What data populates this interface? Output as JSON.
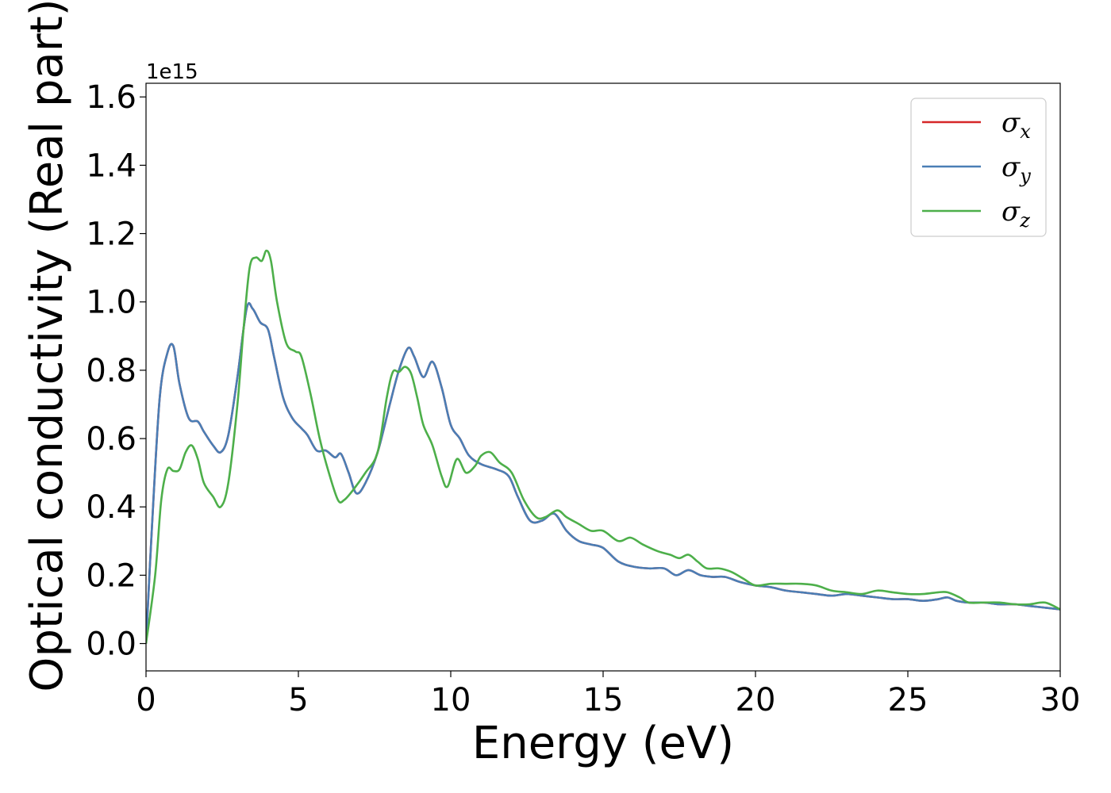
{
  "chart_data": {
    "type": "line",
    "title": "",
    "xlabel": "Energy (eV)",
    "ylabel": "Optical conductivity (Real part)",
    "y_offset_label": "1e15",
    "y_scale_factor": 1000000000000000.0,
    "xlim": [
      0,
      30
    ],
    "ylim": [
      -0.08,
      1.64
    ],
    "x_ticks": [
      0,
      5,
      10,
      15,
      20,
      25,
      30
    ],
    "x_tick_labels": [
      "0",
      "5",
      "10",
      "15",
      "20",
      "25",
      "30"
    ],
    "y_ticks": [
      0.0,
      0.2,
      0.4,
      0.6,
      0.8,
      1.0,
      1.2,
      1.4,
      1.6
    ],
    "y_tick_labels": [
      "0.0",
      "0.2",
      "0.4",
      "0.6",
      "0.8",
      "1.0",
      "1.2",
      "1.4",
      "1.6"
    ],
    "grid": false,
    "legend_position": "top-right",
    "series": [
      {
        "name": "σx",
        "legend_symbol": "σ",
        "legend_sub": "x",
        "color": "#d62728",
        "x": [
          0,
          0.2,
          0.45,
          0.7,
          0.9,
          1.1,
          1.4,
          1.7,
          1.9,
          2.2,
          2.45,
          2.7,
          3.0,
          3.3,
          3.5,
          3.75,
          4.0,
          4.2,
          4.5,
          4.8,
          5.1,
          5.3,
          5.6,
          5.9,
          6.2,
          6.4,
          6.65,
          6.9,
          7.2,
          7.6,
          8.0,
          8.3,
          8.6,
          8.8,
          9.1,
          9.4,
          9.7,
          10.0,
          10.3,
          10.6,
          11.0,
          11.5,
          11.9,
          12.2,
          12.6,
          13.0,
          13.4,
          13.8,
          14.2,
          14.6,
          15.0,
          15.5,
          16.0,
          16.5,
          17.0,
          17.4,
          17.8,
          18.2,
          18.6,
          19.0,
          19.5,
          20.0,
          20.5,
          21.0,
          21.5,
          22.0,
          22.5,
          23.0,
          23.5,
          24.0,
          24.5,
          25.0,
          25.5,
          26.0,
          26.3,
          26.6,
          27.0,
          27.5,
          28.0,
          28.5,
          29.0,
          29.5,
          30.0
        ],
        "values": [
          0.0,
          0.35,
          0.72,
          0.85,
          0.87,
          0.76,
          0.66,
          0.65,
          0.62,
          0.58,
          0.56,
          0.61,
          0.78,
          0.98,
          0.98,
          0.94,
          0.92,
          0.84,
          0.72,
          0.66,
          0.63,
          0.61,
          0.565,
          0.565,
          0.545,
          0.555,
          0.5,
          0.44,
          0.47,
          0.56,
          0.7,
          0.8,
          0.865,
          0.84,
          0.78,
          0.825,
          0.75,
          0.64,
          0.6,
          0.55,
          0.525,
          0.51,
          0.49,
          0.43,
          0.36,
          0.36,
          0.38,
          0.33,
          0.3,
          0.29,
          0.28,
          0.24,
          0.225,
          0.22,
          0.22,
          0.2,
          0.215,
          0.2,
          0.195,
          0.195,
          0.18,
          0.17,
          0.165,
          0.155,
          0.15,
          0.145,
          0.14,
          0.145,
          0.14,
          0.135,
          0.13,
          0.13,
          0.125,
          0.13,
          0.135,
          0.125,
          0.12,
          0.12,
          0.115,
          0.115,
          0.11,
          0.105,
          0.1
        ]
      },
      {
        "name": "σy",
        "legend_symbol": "σ",
        "legend_sub": "y",
        "color": "#4a7eb5",
        "x": [
          0,
          0.2,
          0.45,
          0.7,
          0.9,
          1.1,
          1.4,
          1.7,
          1.9,
          2.2,
          2.45,
          2.7,
          3.0,
          3.3,
          3.5,
          3.75,
          4.0,
          4.2,
          4.5,
          4.8,
          5.1,
          5.3,
          5.6,
          5.9,
          6.2,
          6.4,
          6.65,
          6.9,
          7.2,
          7.6,
          8.0,
          8.3,
          8.6,
          8.8,
          9.1,
          9.4,
          9.7,
          10.0,
          10.3,
          10.6,
          11.0,
          11.5,
          11.9,
          12.2,
          12.6,
          13.0,
          13.4,
          13.8,
          14.2,
          14.6,
          15.0,
          15.5,
          16.0,
          16.5,
          17.0,
          17.4,
          17.8,
          18.2,
          18.6,
          19.0,
          19.5,
          20.0,
          20.5,
          21.0,
          21.5,
          22.0,
          22.5,
          23.0,
          23.5,
          24.0,
          24.5,
          25.0,
          25.5,
          26.0,
          26.3,
          26.6,
          27.0,
          27.5,
          28.0,
          28.5,
          29.0,
          29.5,
          30.0
        ],
        "values": [
          0.0,
          0.35,
          0.72,
          0.85,
          0.87,
          0.76,
          0.66,
          0.65,
          0.62,
          0.58,
          0.56,
          0.61,
          0.78,
          0.98,
          0.98,
          0.94,
          0.92,
          0.84,
          0.72,
          0.66,
          0.63,
          0.61,
          0.565,
          0.565,
          0.545,
          0.555,
          0.5,
          0.44,
          0.47,
          0.56,
          0.7,
          0.8,
          0.865,
          0.84,
          0.78,
          0.825,
          0.75,
          0.64,
          0.6,
          0.55,
          0.525,
          0.51,
          0.49,
          0.43,
          0.36,
          0.36,
          0.38,
          0.33,
          0.3,
          0.29,
          0.28,
          0.24,
          0.225,
          0.22,
          0.22,
          0.2,
          0.215,
          0.2,
          0.195,
          0.195,
          0.18,
          0.17,
          0.165,
          0.155,
          0.15,
          0.145,
          0.14,
          0.145,
          0.14,
          0.135,
          0.13,
          0.13,
          0.125,
          0.13,
          0.135,
          0.125,
          0.12,
          0.12,
          0.115,
          0.115,
          0.11,
          0.105,
          0.1
        ]
      },
      {
        "name": "σz",
        "legend_symbol": "σ",
        "legend_sub": "z",
        "color": "#4daf4a",
        "x": [
          0,
          0.3,
          0.5,
          0.7,
          0.9,
          1.1,
          1.3,
          1.5,
          1.7,
          1.9,
          2.2,
          2.45,
          2.7,
          3.0,
          3.2,
          3.4,
          3.6,
          3.8,
          3.95,
          4.1,
          4.3,
          4.6,
          4.9,
          5.1,
          5.4,
          5.7,
          6.0,
          6.3,
          6.5,
          6.8,
          7.2,
          7.6,
          7.9,
          8.1,
          8.3,
          8.5,
          8.7,
          8.9,
          9.1,
          9.4,
          9.7,
          9.9,
          10.2,
          10.5,
          10.8,
          11.0,
          11.3,
          11.6,
          12.0,
          12.4,
          12.8,
          13.1,
          13.5,
          13.8,
          14.2,
          14.6,
          15.0,
          15.5,
          15.9,
          16.3,
          16.8,
          17.2,
          17.5,
          17.8,
          18.1,
          18.4,
          18.8,
          19.2,
          19.6,
          20.0,
          20.5,
          21.0,
          21.5,
          22.0,
          22.5,
          23.0,
          23.5,
          24.0,
          24.5,
          25.0,
          25.5,
          26.0,
          26.3,
          26.7,
          27.0,
          27.5,
          28.0,
          28.5,
          29.0,
          29.5,
          30.0
        ],
        "values": [
          0.0,
          0.2,
          0.42,
          0.51,
          0.505,
          0.51,
          0.56,
          0.58,
          0.54,
          0.47,
          0.43,
          0.4,
          0.47,
          0.7,
          0.92,
          1.1,
          1.13,
          1.12,
          1.15,
          1.12,
          1.0,
          0.88,
          0.855,
          0.84,
          0.73,
          0.6,
          0.5,
          0.42,
          0.42,
          0.45,
          0.5,
          0.56,
          0.72,
          0.795,
          0.795,
          0.81,
          0.79,
          0.72,
          0.64,
          0.58,
          0.49,
          0.46,
          0.54,
          0.5,
          0.52,
          0.55,
          0.56,
          0.53,
          0.5,
          0.42,
          0.37,
          0.37,
          0.39,
          0.37,
          0.35,
          0.33,
          0.33,
          0.3,
          0.31,
          0.29,
          0.27,
          0.26,
          0.25,
          0.26,
          0.24,
          0.22,
          0.22,
          0.21,
          0.19,
          0.17,
          0.175,
          0.175,
          0.175,
          0.17,
          0.155,
          0.15,
          0.145,
          0.155,
          0.15,
          0.145,
          0.145,
          0.15,
          0.15,
          0.135,
          0.12,
          0.12,
          0.12,
          0.115,
          0.115,
          0.12,
          0.1
        ]
      }
    ]
  }
}
